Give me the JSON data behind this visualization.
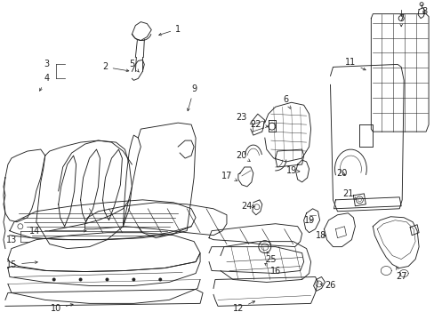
{
  "bg_color": "#ffffff",
  "line_color": "#222222",
  "fig_width": 4.89,
  "fig_height": 3.6,
  "dpi": 100,
  "label_fontsize": 7.0,
  "arrow_lw": 0.5,
  "draw_lw": 0.65
}
